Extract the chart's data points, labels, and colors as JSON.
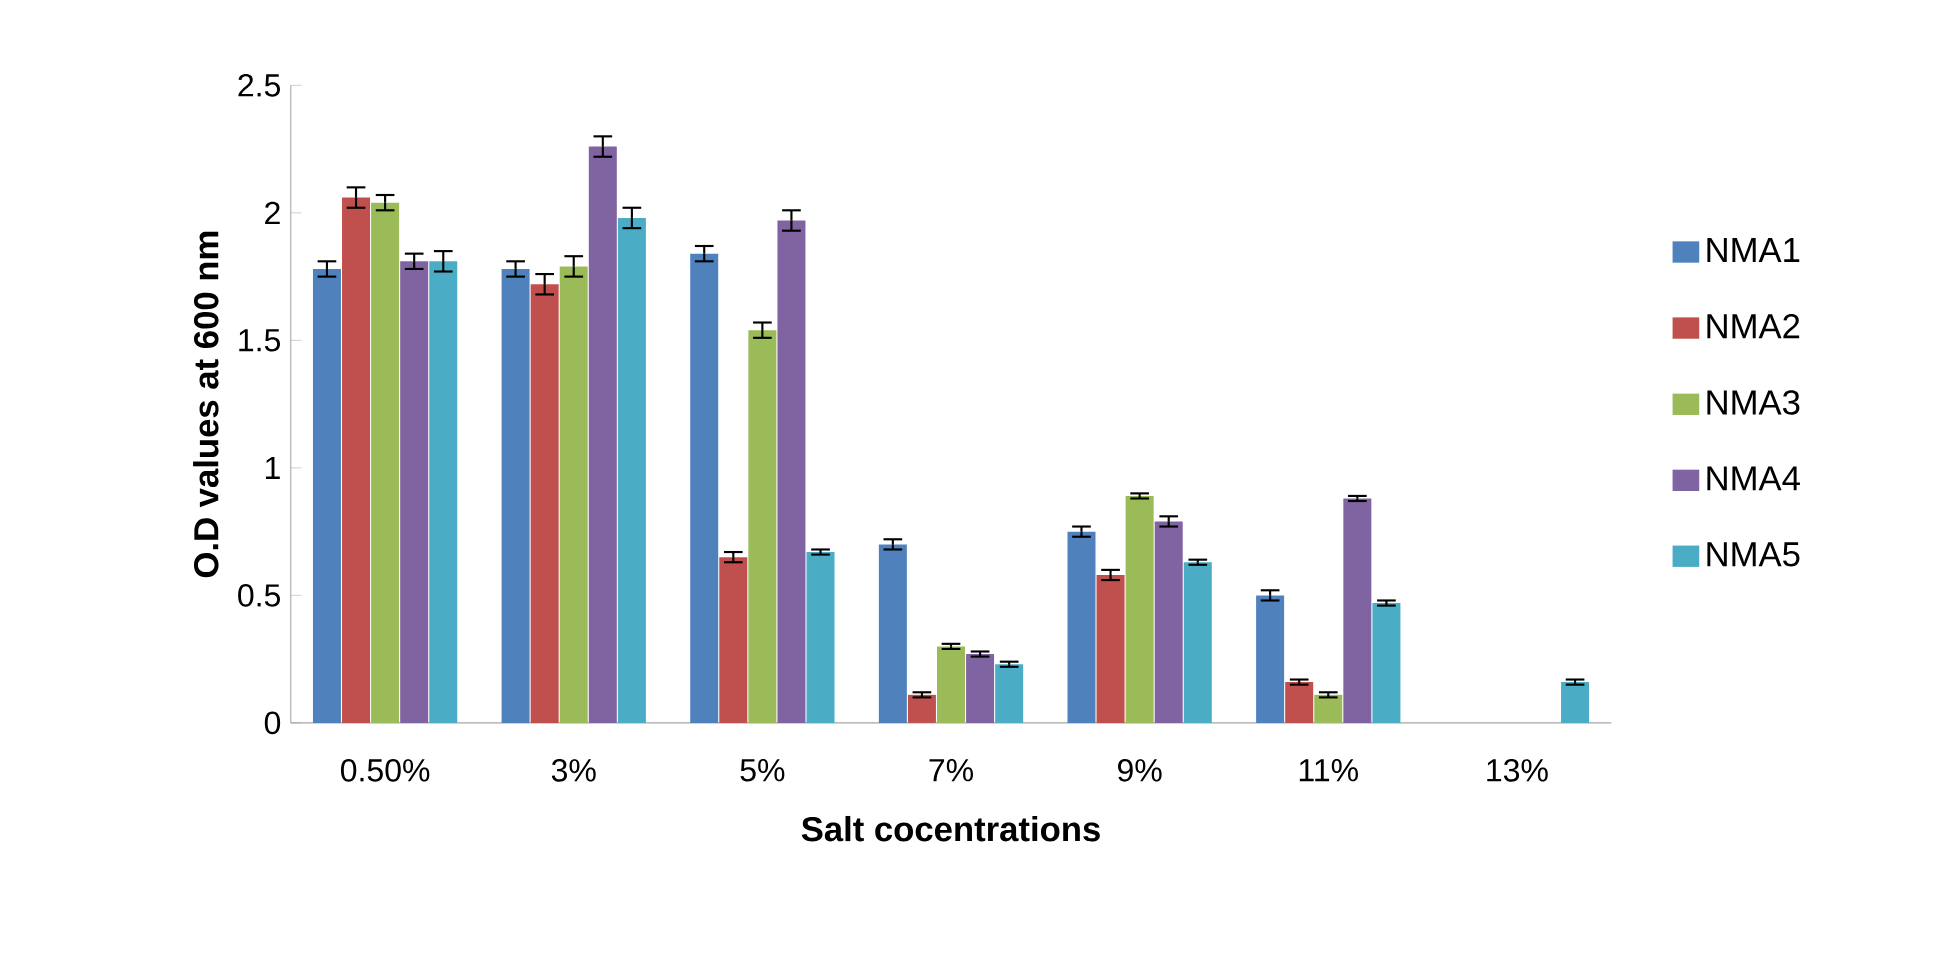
{
  "chart_data": {
    "type": "bar",
    "xlabel": "Salt cocentrations",
    "ylabel": "O.D values at 600 nm",
    "categories": [
      "0.50%",
      "3%",
      "5%",
      "7%",
      "9%",
      "11%",
      "13%"
    ],
    "ylim": [
      0,
      2.5
    ],
    "yticks": [
      0,
      0.5,
      1,
      1.5,
      2,
      2.5
    ],
    "legend": "right",
    "grid": false,
    "series": [
      {
        "name": "NMA1",
        "color": "#4f81bd",
        "values": [
          1.78,
          1.78,
          1.84,
          0.7,
          0.75,
          0.5,
          0
        ],
        "errors": [
          0.03,
          0.03,
          0.03,
          0.02,
          0.02,
          0.02,
          null
        ]
      },
      {
        "name": "NMA2",
        "color": "#c0504d",
        "values": [
          2.06,
          1.72,
          0.65,
          0.11,
          0.58,
          0.16,
          0
        ],
        "errors": [
          0.04,
          0.04,
          0.02,
          0.01,
          0.02,
          0.01,
          null
        ]
      },
      {
        "name": "NMA3",
        "color": "#9bbb59",
        "values": [
          2.04,
          1.79,
          1.54,
          0.3,
          0.89,
          0.11,
          0
        ],
        "errors": [
          0.03,
          0.04,
          0.03,
          0.01,
          0.01,
          0.01,
          null
        ]
      },
      {
        "name": "NMA4",
        "color": "#8064a2",
        "values": [
          1.81,
          2.26,
          1.97,
          0.27,
          0.79,
          0.88,
          0
        ],
        "errors": [
          0.03,
          0.04,
          0.04,
          0.01,
          0.02,
          0.01,
          null
        ]
      },
      {
        "name": "NMA5",
        "color": "#4bacc6",
        "values": [
          1.81,
          1.98,
          0.67,
          0.23,
          0.63,
          0.47,
          0.16
        ],
        "errors": [
          0.04,
          0.04,
          0.01,
          0.01,
          0.01,
          0.01,
          0.01
        ]
      }
    ]
  }
}
